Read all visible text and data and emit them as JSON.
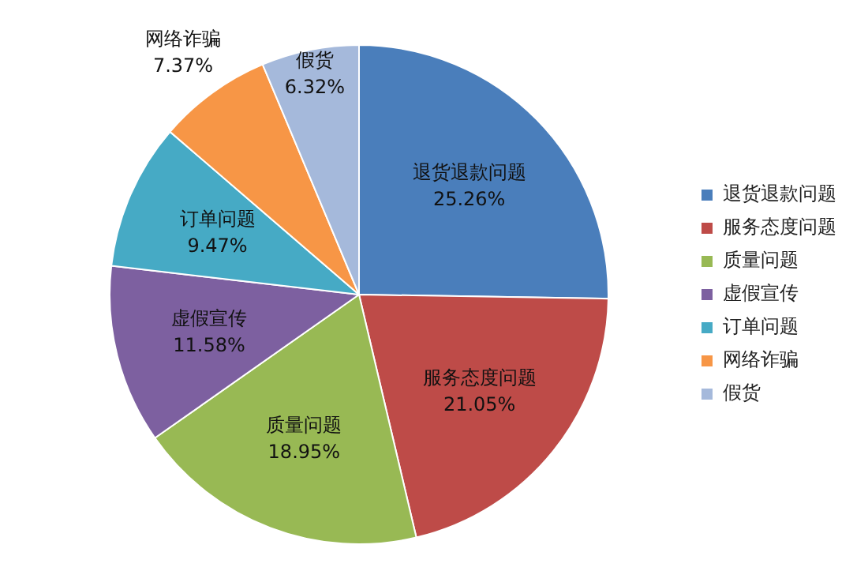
{
  "chart_data": {
    "type": "pie",
    "categories": [
      "退货退款问题",
      "服务态度问题",
      "质量问题",
      "虚假宣传",
      "订单问题",
      "网络诈骗",
      "假货"
    ],
    "values": [
      25.26,
      21.05,
      18.95,
      11.58,
      9.47,
      7.37,
      6.32
    ],
    "value_labels": [
      "25.26%",
      "21.05%",
      "18.95%",
      "11.58%",
      "9.47%",
      "7.37%",
      "6.32%"
    ],
    "colors": [
      "#4a7ebb",
      "#be4b48",
      "#98b954",
      "#7d60a0",
      "#46aac5",
      "#f79646",
      "#a5b9db"
    ],
    "legend": "right"
  }
}
